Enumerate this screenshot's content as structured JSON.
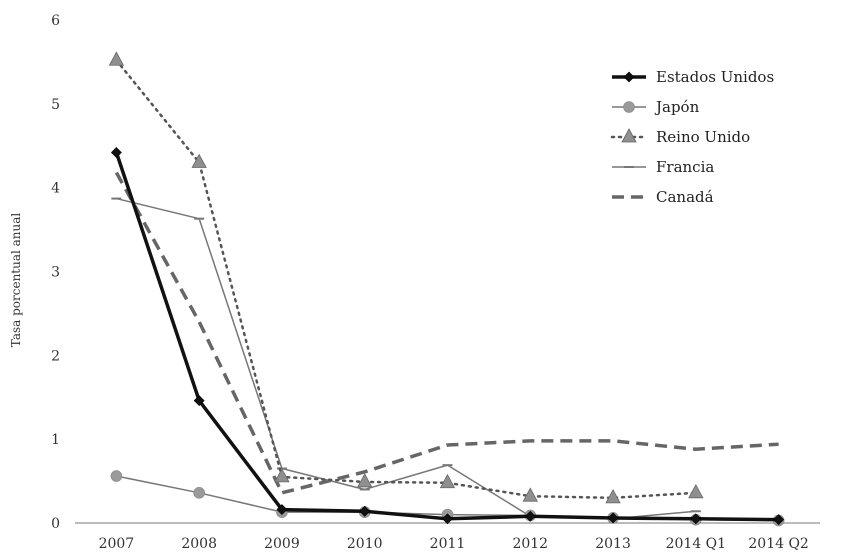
{
  "chart_data": {
    "type": "line",
    "categories": [
      "2007",
      "2008",
      "2009",
      "2010",
      "2011",
      "2012",
      "2013",
      "2014 Q1",
      "2014 Q2"
    ],
    "ylabel": "Tasa porcentual anual",
    "xlabel": "",
    "ylim": [
      0,
      6
    ],
    "yticks": [
      "0",
      "1",
      "2",
      "3",
      "4",
      "5",
      "6"
    ],
    "grid": false,
    "legend": "top-right",
    "series": [
      {
        "name": "Estados Unidos",
        "values": [
          4.42,
          1.46,
          0.16,
          0.14,
          0.05,
          0.08,
          0.06,
          0.05,
          0.04
        ],
        "color": "#111111",
        "style": "thick-solid",
        "marker": "diamond"
      },
      {
        "name": "Japón",
        "values": [
          0.56,
          0.36,
          0.13,
          0.13,
          0.1,
          0.09,
          0.06,
          0.04,
          0.03
        ],
        "color": "#777777",
        "style": "thin-solid",
        "marker": "circle"
      },
      {
        "name": "Reino Unido",
        "values": [
          5.52,
          4.3,
          0.55,
          0.49,
          0.48,
          0.32,
          0.3,
          0.36,
          null
        ],
        "color": "#555555",
        "style": "dotted",
        "marker": "triangle"
      },
      {
        "name": "Francia",
        "values": [
          3.87,
          3.63,
          0.65,
          0.4,
          0.69,
          0.08,
          0.05,
          0.14,
          null
        ],
        "color": "#777777",
        "style": "thin-solid",
        "marker": "dash"
      },
      {
        "name": "Canadá",
        "values": [
          4.18,
          2.4,
          0.36,
          0.61,
          0.93,
          0.98,
          0.98,
          0.88,
          0.94
        ],
        "color": "#666666",
        "style": "dashed",
        "marker": "none"
      }
    ]
  }
}
